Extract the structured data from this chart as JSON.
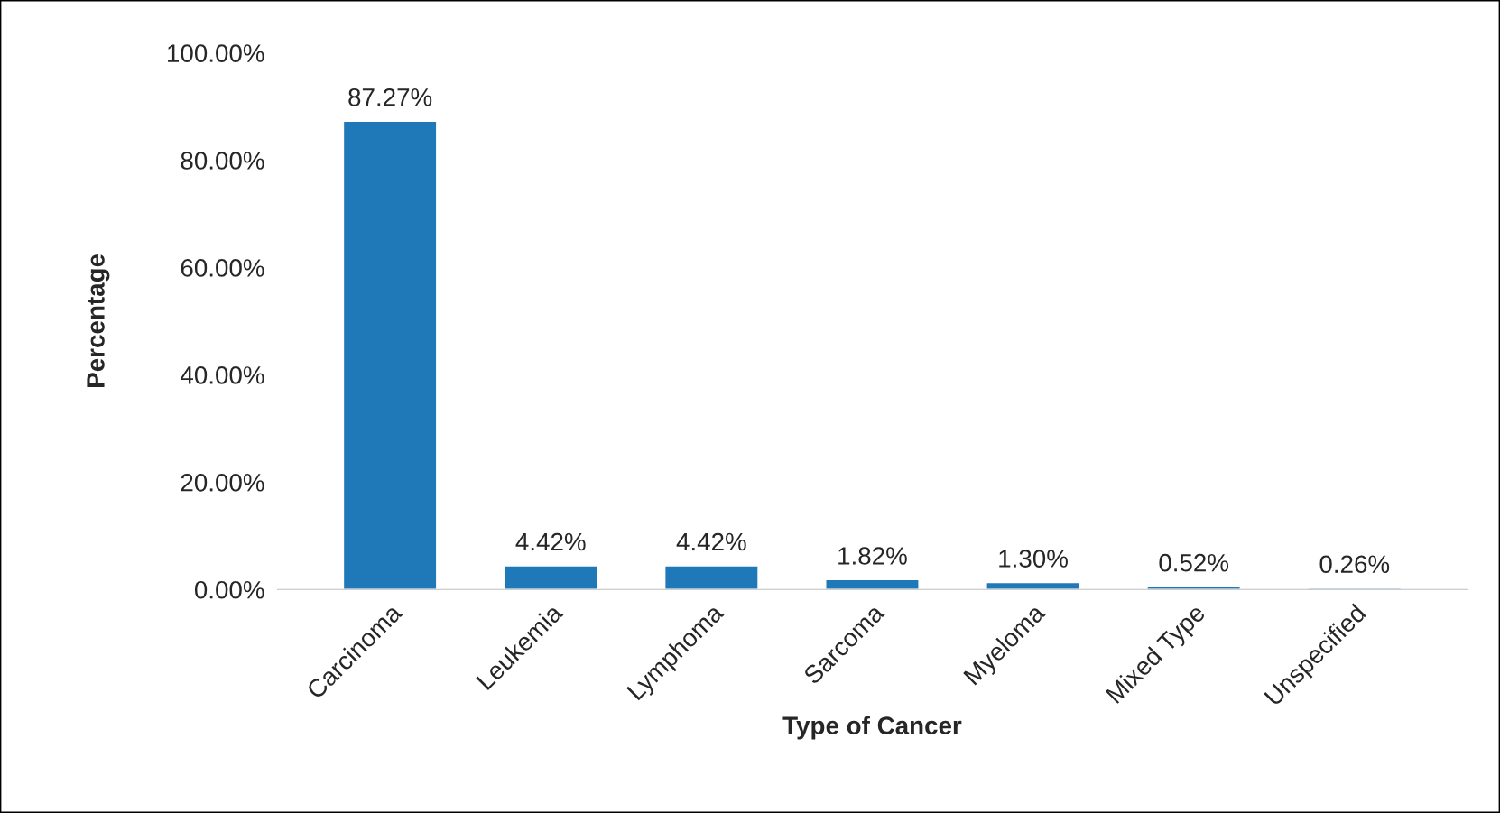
{
  "chart_data": {
    "type": "bar",
    "xlabel": "Type of Cancer",
    "ylabel": "Percentage",
    "categories": [
      "Carcinoma",
      "Leukemia",
      "Lymphoma",
      "Sarcoma",
      "Myeloma",
      "Mixed Type",
      "Unspecified"
    ],
    "values": [
      87.27,
      4.42,
      4.42,
      1.82,
      1.3,
      0.52,
      0.26
    ],
    "value_labels": [
      "87.27%",
      "4.42%",
      "4.42%",
      "1.82%",
      "1.30%",
      "0.52%",
      "0.26%"
    ],
    "color": "#1f78b8",
    "ylim": [
      0,
      100
    ],
    "yticks": [
      {
        "value": 0,
        "label": "0.00%"
      },
      {
        "value": 20,
        "label": "20.00%"
      },
      {
        "value": 40,
        "label": "40.00%"
      },
      {
        "value": 60,
        "label": "60.00%"
      },
      {
        "value": 80,
        "label": "80.00%"
      },
      {
        "value": 100,
        "label": "100.00%"
      }
    ],
    "grid": false
  }
}
